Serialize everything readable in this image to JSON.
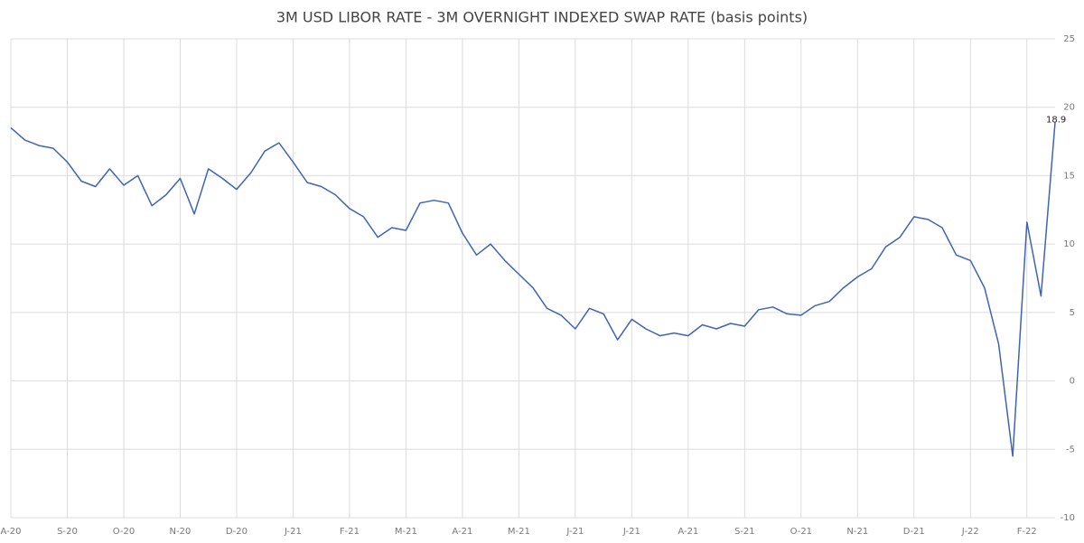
{
  "chart_data": {
    "type": "line",
    "title": "3M USD LIBOR RATE - 3M OVERNIGHT INDEXED SWAP RATE (basis points)",
    "categories": [
      "A-20",
      null,
      null,
      null,
      "S-20",
      null,
      null,
      null,
      "O-20",
      null,
      null,
      null,
      "N-20",
      null,
      null,
      null,
      "D-20",
      null,
      null,
      null,
      "J-21",
      null,
      null,
      null,
      "F-21",
      null,
      null,
      null,
      "M-21",
      null,
      null,
      null,
      "A-21",
      null,
      null,
      null,
      "M-21",
      null,
      null,
      null,
      "J-21",
      null,
      null,
      null,
      "J-21",
      null,
      null,
      null,
      "A-21",
      null,
      null,
      null,
      "S-21",
      null,
      null,
      null,
      "O-21",
      null,
      null,
      null,
      "N-21",
      null,
      null,
      null,
      "D-21",
      null,
      null,
      null,
      "J-22",
      null,
      null,
      null,
      "F-22",
      null,
      null
    ],
    "values": [
      18.5,
      17.6,
      17.2,
      17.0,
      16.0,
      14.6,
      14.2,
      15.5,
      14.3,
      15.0,
      12.8,
      13.6,
      14.8,
      12.2,
      15.5,
      14.8,
      14.0,
      15.2,
      16.8,
      17.4,
      16.0,
      14.5,
      14.2,
      13.6,
      12.6,
      12.0,
      10.5,
      11.2,
      11.0,
      13.0,
      13.2,
      13.0,
      10.8,
      9.2,
      10.0,
      8.8,
      7.8,
      6.8,
      5.3,
      4.8,
      3.8,
      5.3,
      4.9,
      3.0,
      4.5,
      3.8,
      3.3,
      3.5,
      3.3,
      4.1,
      3.8,
      4.2,
      4.0,
      5.2,
      5.4,
      4.9,
      4.8,
      5.5,
      5.8,
      6.8,
      7.6,
      8.2,
      9.8,
      10.5,
      12.0,
      11.8,
      11.2,
      9.2,
      8.8,
      6.8,
      2.7,
      -5.5,
      11.6,
      6.2,
      18.9
    ],
    "color": "#3e64b8",
    "ylim": [
      -10,
      25
    ],
    "yticks": [
      25,
      20,
      15,
      10,
      5,
      0,
      -5,
      -10
    ],
    "grid": true
  }
}
